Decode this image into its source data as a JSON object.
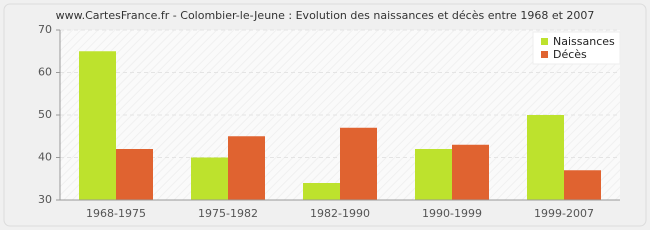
{
  "chart_data": {
    "type": "bar",
    "title": "www.CartesFrance.fr - Colombier-le-Jeune : Evolution des naissances et décès entre 1968 et 2007",
    "categories": [
      "1968-1975",
      "1975-1982",
      "1982-1990",
      "1990-1999",
      "1999-2007"
    ],
    "series": [
      {
        "name": "Naissances",
        "color": "#bde22d",
        "values": [
          65,
          40,
          34,
          42,
          50
        ]
      },
      {
        "name": "Décès",
        "color": "#e06330",
        "values": [
          42,
          45,
          47,
          43,
          37
        ]
      }
    ],
    "ylim": [
      30,
      70
    ],
    "yticks": [
      30,
      40,
      50,
      60,
      70
    ],
    "grid": true,
    "legend": "top-right"
  }
}
